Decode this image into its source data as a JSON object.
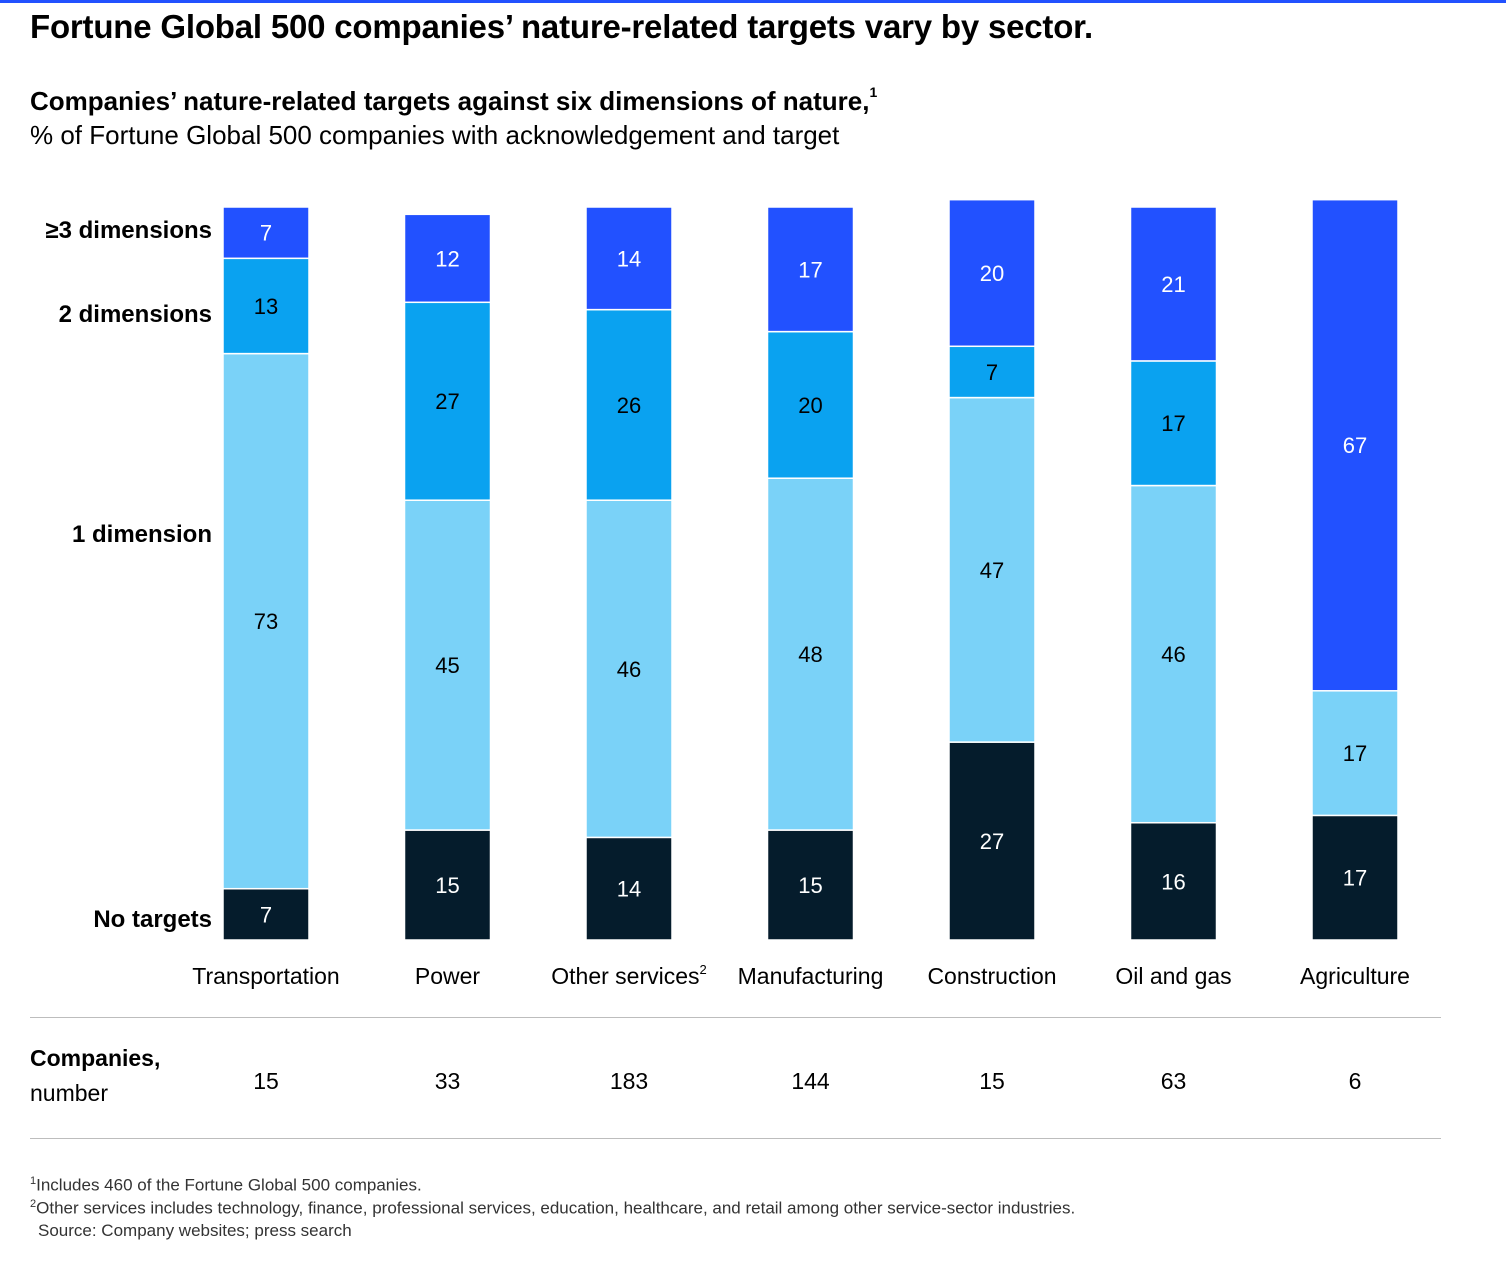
{
  "title": "Fortune Global 500 companies’ nature-related targets vary by sector.",
  "subtitle": "Companies’ nature-related targets against six dimensions of nature,",
  "subtitle_note": "1",
  "unit": "% of Fortune Global 500 companies with acknowledgement and target",
  "colors": {
    "accent_rule": "#2251ff",
    "no_targets": "#051c2c",
    "one_dimension": "#7ad2f8",
    "two_dimensions": "#0aa2f0",
    "three_plus_dimensions": "#2251ff"
  },
  "chart_data": {
    "type": "bar",
    "stacked": true,
    "orientation": "vertical",
    "ylim": [
      0,
      100
    ],
    "grid": false,
    "legend": "left, aligned with first column",
    "categories": [
      "Transportation",
      "Power",
      "Other services",
      "Manufacturing",
      "Construction",
      "Oil and gas",
      "Agriculture"
    ],
    "category_notes": [
      "",
      "",
      "2",
      "",
      "",
      "",
      ""
    ],
    "series": [
      {
        "name": "No targets",
        "color": "#051c2c",
        "text_color": "#ffffff",
        "values": [
          7,
          15,
          14,
          15,
          27,
          16,
          17
        ]
      },
      {
        "name": "1 dimension",
        "color": "#7ad2f8",
        "text_color": "#000000",
        "values": [
          73,
          45,
          46,
          48,
          47,
          46,
          17
        ]
      },
      {
        "name": "2 dimensions",
        "color": "#0aa2f0",
        "text_color": "#000000",
        "values": [
          13,
          27,
          26,
          20,
          7,
          17,
          0
        ]
      },
      {
        "name": "≥3 dimensions",
        "color": "#2251ff",
        "text_color": "#ffffff",
        "values": [
          7,
          12,
          14,
          17,
          20,
          21,
          67
        ]
      }
    ]
  },
  "companies": {
    "title": "Companies,",
    "unit": "number",
    "values": [
      "15",
      "33",
      "183",
      "144",
      "15",
      "63",
      "6"
    ]
  },
  "footnotes": {
    "note1_mark": "1",
    "note1": "Includes 460 of the Fortune Global 500 companies.",
    "note2_mark": "2",
    "note2": "Other services includes technology, finance, professional services, education, healthcare, and retail among other service-sector industries.",
    "source": "Source: Company websites; press search"
  }
}
